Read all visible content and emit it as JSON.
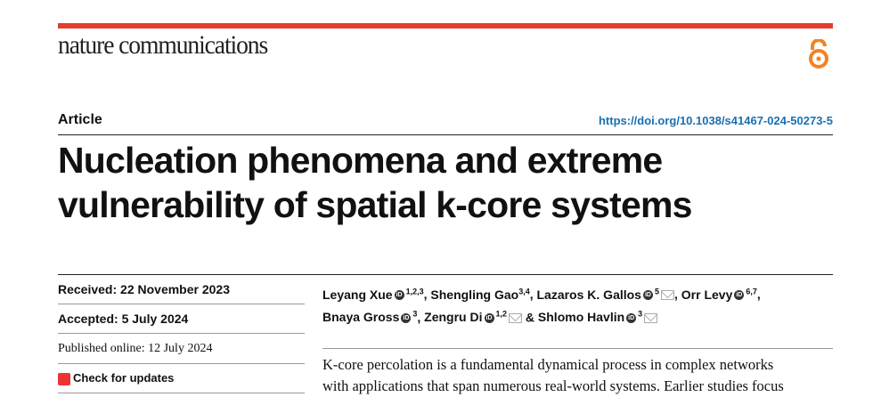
{
  "journal": {
    "name": "nature communications",
    "open_access_icon": "open-access-icon",
    "accent": "#e63b2e",
    "oa_color": "#f58220"
  },
  "article_type": "Article",
  "doi": "https://doi.org/10.1038/s41467-024-50273-5",
  "title": [
    "Nucleation phenomena and extreme",
    "vulnerability of spatial k-core systems"
  ],
  "dates": {
    "received": "Received: 22 November 2023",
    "accepted": "Accepted: 5 July 2024",
    "published": "Published online: 12 July 2024"
  },
  "check_updates": "Check for updates",
  "authors": [
    {
      "name": "Leyang Xue",
      "aff": "1,2,3",
      "orcid": true,
      "mail": false,
      "sep": ", "
    },
    {
      "name": "Shengling Gao",
      "aff": "3,4",
      "orcid": false,
      "mail": false,
      "sep": ", "
    },
    {
      "name": "Lazaros K. Gallos",
      "aff": "5",
      "orcid": true,
      "mail": true,
      "sep": ", "
    },
    {
      "name": "Orr Levy",
      "aff": "6,7",
      "orcid": true,
      "mail": false,
      "sep": ","
    },
    {
      "name": "Bnaya Gross",
      "aff": "3",
      "orcid": true,
      "mail": false,
      "sep": ", "
    },
    {
      "name": "Zengru Di",
      "aff": "1,2",
      "orcid": true,
      "mail": true,
      "sep": " & "
    },
    {
      "name": "Shlomo Havlin",
      "aff": "3",
      "orcid": true,
      "mail": true,
      "sep": ""
    }
  ],
  "abstract": [
    "K-core percolation is a fundamental dynamical process in complex networks",
    "with applications that span numerous real-world systems. Earlier studies focus"
  ]
}
